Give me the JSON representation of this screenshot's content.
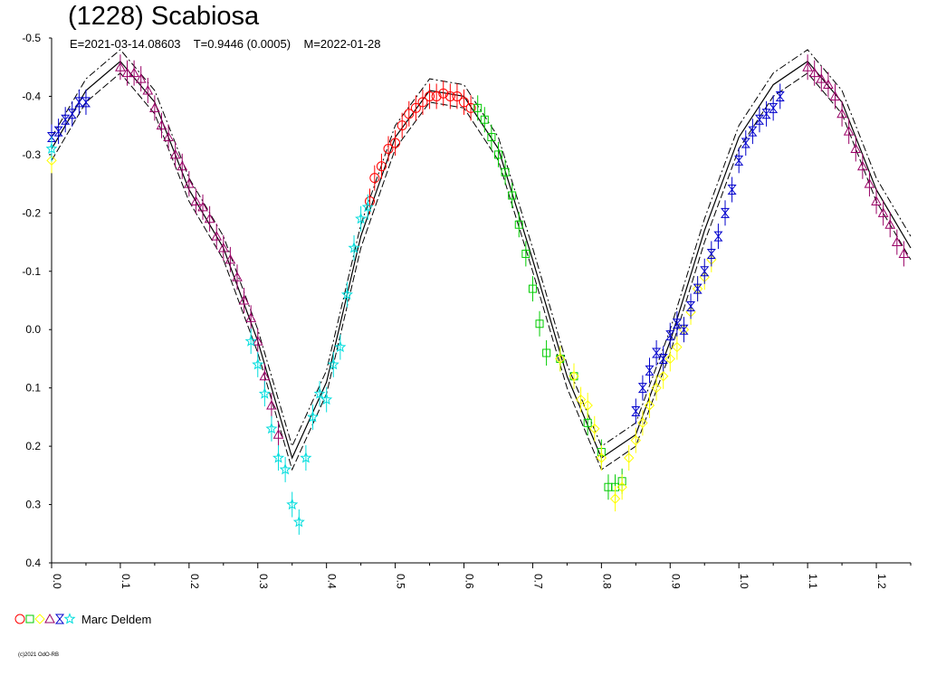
{
  "header": {
    "title": "(1228) Scabiosa",
    "subtitle": "E=2021-03-14.08603    T=0.9446 (0.0005)    M=2022-01-28"
  },
  "legend": {
    "observer": "Marc Deldem"
  },
  "footer": {
    "copyright": "(c)2021 OdO-RB"
  },
  "colors": {
    "red": "#ff0000",
    "green": "#00cc00",
    "yellow": "#ffff00",
    "purple": "#990066",
    "blue": "#0000cc",
    "cyan": "#00dddd",
    "curve": "#000000"
  },
  "chart_data": {
    "type": "scatter",
    "xlabel": "",
    "ylabel": "",
    "xlim": [
      0.0,
      1.25
    ],
    "ylim": [
      -0.5,
      0.4
    ],
    "y_inverted": true,
    "grid": false,
    "x_ticks": [
      "0.0",
      "0.1",
      "0.2",
      "0.3",
      "0.4",
      "0.5",
      "0.6",
      "0.7",
      "0.8",
      "0.9",
      "1.0",
      "1.1",
      "1.2"
    ],
    "y_ticks": [
      "-0.5",
      "-0.4",
      "-0.3",
      "-0.2",
      "-0.1",
      "0.0",
      "0.1",
      "0.2",
      "0.3",
      "0.4"
    ],
    "fit_curve": {
      "phase": [
        0.0,
        0.05,
        0.1,
        0.15,
        0.2,
        0.25,
        0.3,
        0.35,
        0.4,
        0.45,
        0.5,
        0.55,
        0.6,
        0.65,
        0.7,
        0.75,
        0.8,
        0.85,
        0.9,
        0.95,
        1.0,
        1.05,
        1.1,
        1.15,
        1.2,
        1.25
      ],
      "mag": [
        -0.31,
        -0.41,
        -0.46,
        -0.39,
        -0.24,
        -0.14,
        0.02,
        0.22,
        0.09,
        -0.16,
        -0.33,
        -0.41,
        -0.4,
        -0.31,
        -0.12,
        0.08,
        0.22,
        0.18,
        0.02,
        -0.17,
        -0.33,
        -0.42,
        -0.46,
        -0.39,
        -0.24,
        -0.14
      ],
      "offset_dash": 0.02
    },
    "series": [
      {
        "marker": "circle",
        "color": "#ff0000",
        "x": [
          0.463,
          0.47,
          0.48,
          0.49,
          0.5,
          0.51,
          0.52,
          0.53,
          0.54,
          0.55,
          0.56,
          0.57,
          0.58,
          0.59,
          0.6,
          0.61
        ],
        "y": [
          -0.22,
          -0.26,
          -0.28,
          -0.31,
          -0.32,
          -0.35,
          -0.37,
          -0.38,
          -0.39,
          -0.4,
          -0.4,
          -0.405,
          -0.4,
          -0.4,
          -0.39,
          -0.38
        ]
      },
      {
        "marker": "square",
        "color": "#00cc00",
        "x": [
          0.62,
          0.63,
          0.64,
          0.65,
          0.66,
          0.67,
          0.68,
          0.69,
          0.7,
          0.71,
          0.72,
          0.74,
          0.76,
          0.78,
          0.8,
          0.81,
          0.82,
          0.83
        ],
        "y": [
          -0.38,
          -0.36,
          -0.33,
          -0.3,
          -0.27,
          -0.23,
          -0.18,
          -0.13,
          -0.07,
          -0.01,
          0.04,
          0.05,
          0.08,
          0.16,
          0.21,
          0.27,
          0.27,
          0.26
        ]
      },
      {
        "marker": "diamond",
        "color": "#ffff00",
        "x": [
          0.0,
          0.74,
          0.76,
          0.77,
          0.78,
          0.79,
          0.8,
          0.82,
          0.83,
          0.84,
          0.85,
          0.86,
          0.87,
          0.88,
          0.89,
          0.9,
          0.91,
          0.92,
          0.93,
          0.94,
          0.95,
          0.96
        ],
        "y": [
          -0.29,
          0.05,
          0.08,
          0.12,
          0.13,
          0.17,
          0.22,
          0.29,
          0.27,
          0.22,
          0.19,
          0.16,
          0.13,
          0.1,
          0.08,
          0.05,
          0.03,
          0.0,
          -0.03,
          -0.07,
          -0.09,
          -0.12
        ]
      },
      {
        "marker": "triangle",
        "color": "#990066",
        "x": [
          0.1,
          0.11,
          0.12,
          0.13,
          0.14,
          0.15,
          0.16,
          0.17,
          0.18,
          0.19,
          0.2,
          0.21,
          0.22,
          0.23,
          0.24,
          0.25,
          0.26,
          0.27,
          0.28,
          0.29,
          0.3,
          0.31,
          0.32,
          0.33,
          1.1,
          1.11,
          1.12,
          1.13,
          1.14,
          1.15,
          1.16,
          1.17,
          1.18,
          1.19,
          1.2,
          1.21,
          1.22,
          1.23,
          1.24
        ],
        "y": [
          -0.45,
          -0.44,
          -0.44,
          -0.43,
          -0.41,
          -0.38,
          -0.35,
          -0.33,
          -0.3,
          -0.28,
          -0.25,
          -0.22,
          -0.21,
          -0.19,
          -0.16,
          -0.14,
          -0.12,
          -0.09,
          -0.05,
          -0.02,
          0.02,
          0.08,
          0.13,
          0.18,
          -0.45,
          -0.44,
          -0.43,
          -0.42,
          -0.4,
          -0.37,
          -0.34,
          -0.31,
          -0.28,
          -0.25,
          -0.22,
          -0.2,
          -0.18,
          -0.15,
          -0.13
        ]
      },
      {
        "marker": "bowtie",
        "color": "#0000cc",
        "x": [
          0.0,
          0.01,
          0.02,
          0.03,
          0.04,
          0.05,
          0.85,
          0.86,
          0.87,
          0.88,
          0.89,
          0.9,
          0.91,
          0.92,
          0.93,
          0.94,
          0.95,
          0.96,
          0.97,
          0.98,
          0.99,
          1.0,
          1.01,
          1.02,
          1.03,
          1.04,
          1.05,
          1.06
        ],
        "y": [
          -0.33,
          -0.34,
          -0.36,
          -0.37,
          -0.39,
          -0.39,
          0.14,
          0.1,
          0.07,
          0.04,
          0.05,
          0.01,
          -0.01,
          0.0,
          -0.04,
          -0.07,
          -0.1,
          -0.13,
          -0.16,
          -0.2,
          -0.24,
          -0.29,
          -0.32,
          -0.34,
          -0.36,
          -0.37,
          -0.38,
          -0.4
        ]
      },
      {
        "marker": "star",
        "color": "#00dddd",
        "x": [
          0.0,
          0.29,
          0.3,
          0.31,
          0.32,
          0.33,
          0.34,
          0.35,
          0.36,
          0.37,
          0.38,
          0.39,
          0.4,
          0.41,
          0.42,
          0.43,
          0.44,
          0.45,
          0.46
        ],
        "y": [
          -0.31,
          0.02,
          0.06,
          0.11,
          0.17,
          0.22,
          0.24,
          0.3,
          0.33,
          0.22,
          0.15,
          0.11,
          0.12,
          0.06,
          0.03,
          -0.06,
          -0.14,
          -0.19,
          -0.21
        ]
      }
    ]
  }
}
